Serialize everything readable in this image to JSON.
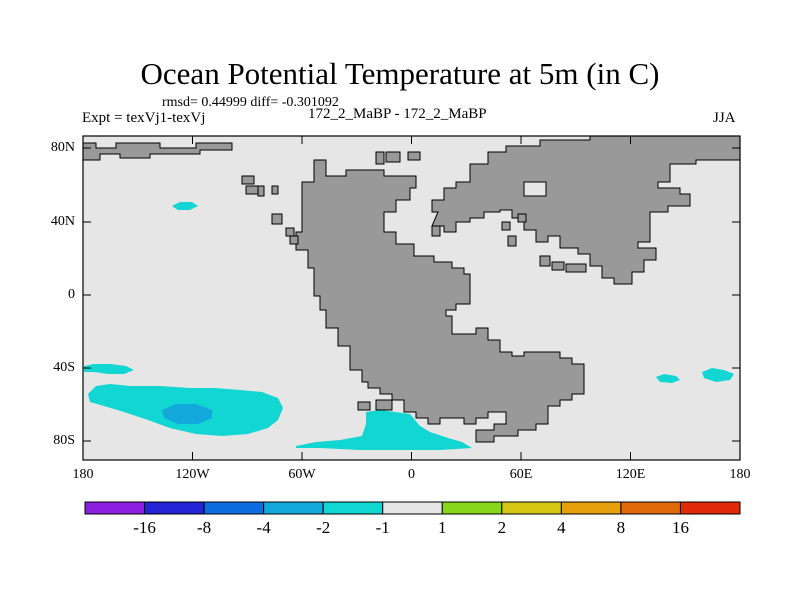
{
  "title": "Ocean Potential Temperature at 5m (in C)",
  "stats": "rmsd= 0.44999 diff= -0.301092",
  "expt": "Expt = texVj1-texVj",
  "center_label": "172_2_MaBP - 172_2_MaBP",
  "season": "JJA",
  "latitude_ticks": [
    "80N",
    "40N",
    "0",
    "40S",
    "80S"
  ],
  "longitude_ticks": [
    "180",
    "120W",
    "60W",
    "0",
    "60E",
    "120E",
    "180"
  ],
  "colorbar": {
    "labels": [
      "-16",
      "-8",
      "-4",
      "-2",
      "-1",
      "1",
      "2",
      "4",
      "8",
      "16"
    ],
    "colors": [
      "#8a1fe0",
      "#2424d6",
      "#0c6ce0",
      "#12a8dc",
      "#12d6d2",
      "#e6e6e6",
      "#86d61a",
      "#d6c812",
      "#e6a00c",
      "#e06a08",
      "#e02a08"
    ]
  },
  "colors": {
    "ocean_neutral": "#e6e6e6",
    "land": "#999999",
    "cold_anomaly": "#12d6d2",
    "colder_anomaly": "#12a8dc"
  }
}
